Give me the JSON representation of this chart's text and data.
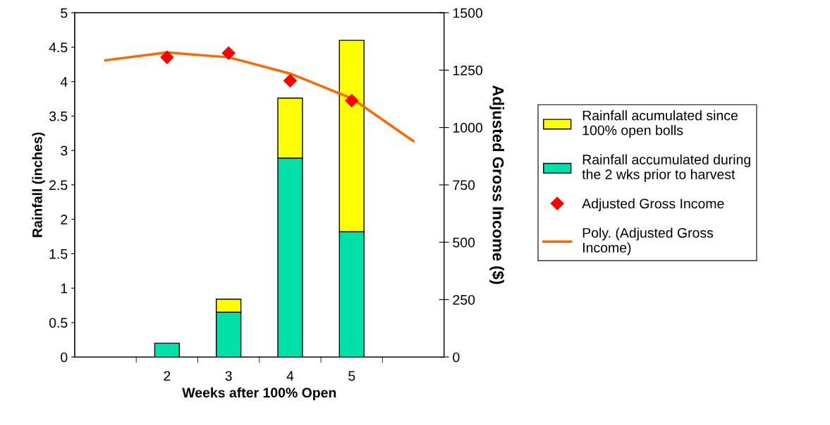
{
  "chart_data": {
    "type": "bar",
    "stacked": true,
    "xlabel": "Weeks after 100% Open",
    "ylabel": "Rainfall (inches)",
    "y2label": "Adjusted Gross Income ($)",
    "categories": [
      null,
      "2",
      "3",
      "4",
      "5",
      null
    ],
    "series": [
      {
        "name": "Rainfall accumulated during the 2 wks prior to harvest",
        "color": "#00e0a8",
        "values": [
          null,
          0.2,
          0.65,
          2.89,
          1.82,
          null
        ]
      },
      {
        "name": "Rainfall acumulated since 100% open bolls",
        "color": "#ffff00",
        "values": [
          null,
          null,
          0.19,
          0.87,
          2.78,
          null
        ]
      },
      {
        "name": "Adjusted Gross Income",
        "type": "scatter",
        "axis": "y2",
        "marker": "diamond",
        "color": "#ff0000",
        "values": [
          null,
          1306,
          1324,
          1204,
          1117,
          null
        ]
      },
      {
        "name": "Poly. (Adjusted Gross Income)",
        "type": "line",
        "axis": "y2",
        "marker": "none",
        "color": "#ff6600",
        "values": [
          1293,
          1327,
          1306,
          1235,
          1127,
          941
        ]
      }
    ],
    "ylim": [
      0,
      5
    ],
    "yticks": [
      0,
      0.5,
      1,
      1.5,
      2,
      2.5,
      3,
      3.5,
      4,
      4.5,
      5
    ],
    "y2lim": [
      0,
      1500
    ],
    "y2ticks": [
      0,
      250,
      500,
      750,
      1000,
      1250,
      1500
    ],
    "grid": false,
    "legend": "right"
  }
}
